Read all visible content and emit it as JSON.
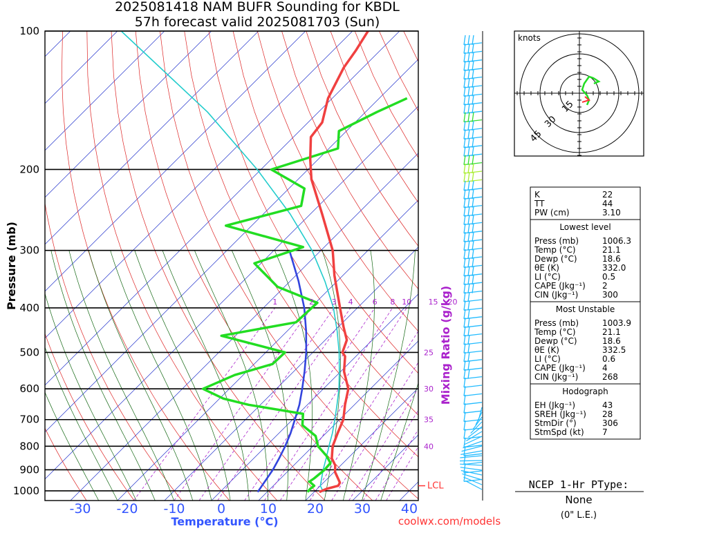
{
  "title": {
    "line1": "2025081418 NAM BUFR Sounding for KBDL",
    "line2": "57h forecast valid 2025081703 (Sun)"
  },
  "colors": {
    "temperature": "#f04040",
    "dewpoint": "#22dd22",
    "parcel": "#22cccc",
    "moist_adiabat_ref": "#3344dd",
    "isotherm": "#2233cc",
    "dry_adiabat": "#dd2222",
    "moist_adiabat": "#116611",
    "mixing_ratio": "#aa22cc",
    "axis_label_blue": "#3355ff",
    "wind": "#22bbff",
    "wind_highlight": "#33dd33",
    "wind_highlight2": "#aaee33",
    "lcl": "#ff3333",
    "url": "#ff3333"
  },
  "chart_data": {
    "type": "skew-t",
    "title": "2025081418 NAM BUFR Sounding for KBDL",
    "subtitle": "57h forecast valid 2025081703 (Sun)",
    "ylabel": "Pressure (mb)",
    "xlabel": "Temperature (°C)",
    "right_label": "Mixing Ratio (g/kg)",
    "ylim": [
      100,
      1050
    ],
    "y_scale": "log-reversed",
    "pressure_ticks": [
      100,
      200,
      300,
      400,
      500,
      600,
      700,
      800,
      900,
      1000
    ],
    "temperature_ticks": [
      -30,
      -20,
      -10,
      0,
      10,
      20,
      30,
      40
    ],
    "mixing_ratio_labels": [
      {
        "label": "1",
        "w": 1
      },
      {
        "label": "2",
        "w": 2
      },
      {
        "label": "3",
        "w": 3
      },
      {
        "label": "4",
        "w": 4
      },
      {
        "label": "6",
        "w": 6
      },
      {
        "label": "8",
        "w": 8
      },
      {
        "label": "10",
        "w": 10
      },
      {
        "label": "15",
        "w": 15
      },
      {
        "label": "20",
        "w": 20
      },
      {
        "label": "25",
        "w": 25
      },
      {
        "label": "30",
        "w": 30
      },
      {
        "label": "35",
        "w": 35
      },
      {
        "label": "40",
        "w": 40
      }
    ],
    "lcl_label": "LCL",
    "lcl_pressure": 975,
    "series": [
      {
        "name": "Temperature",
        "points": [
          [
            1006,
            21.1
          ],
          [
            990,
            22.0
          ],
          [
            975,
            23.8
          ],
          [
            960,
            23.5
          ],
          [
            940,
            22.2
          ],
          [
            910,
            20.2
          ],
          [
            880,
            18.8
          ],
          [
            850,
            16.6
          ],
          [
            800,
            14.2
          ],
          [
            750,
            12.5
          ],
          [
            700,
            10.8
          ],
          [
            650,
            8.0
          ],
          [
            600,
            5.3
          ],
          [
            550,
            0.7
          ],
          [
            510,
            -2.3
          ],
          [
            500,
            -3.7
          ],
          [
            470,
            -5.4
          ],
          [
            440,
            -8.9
          ],
          [
            400,
            -13.7
          ],
          [
            370,
            -17.6
          ],
          [
            340,
            -21.8
          ],
          [
            300,
            -27.5
          ],
          [
            250,
            -37.5
          ],
          [
            210,
            -47.2
          ],
          [
            190,
            -51.7
          ],
          [
            170,
            -56.3
          ],
          [
            158,
            -57.0
          ],
          [
            140,
            -60.9
          ],
          [
            120,
            -64.1
          ],
          [
            110,
            -65.2
          ],
          [
            100,
            -66.7
          ]
        ]
      },
      {
        "name": "Dewpoint",
        "points": [
          [
            1006,
            18.6
          ],
          [
            990,
            18.5
          ],
          [
            975,
            18.7
          ],
          [
            955,
            16.8
          ],
          [
            940,
            17.1
          ],
          [
            900,
            17.5
          ],
          [
            870,
            17.3
          ],
          [
            840,
            15.0
          ],
          [
            800,
            11.1
          ],
          [
            760,
            8.4
          ],
          [
            720,
            3.3
          ],
          [
            680,
            1.0
          ],
          [
            650,
            -12.5
          ],
          [
            630,
            -19.2
          ],
          [
            600,
            -25.6
          ],
          [
            560,
            -21.8
          ],
          [
            530,
            -16.1
          ],
          [
            500,
            -15.9
          ],
          [
            460,
            -33.0
          ],
          [
            430,
            -20.0
          ],
          [
            390,
            -19.6
          ],
          [
            360,
            -31.5
          ],
          [
            320,
            -41.4
          ],
          [
            295,
            -34.5
          ],
          [
            265,
            -55.5
          ],
          [
            240,
            -43.7
          ],
          [
            220,
            -46.7
          ],
          [
            200,
            -57.8
          ],
          [
            180,
            -48.1
          ],
          [
            165,
            -51.6
          ],
          [
            150,
            -47.6
          ],
          [
            140,
            -44.1
          ]
        ]
      },
      {
        "name": "Parcel",
        "points": [
          [
            1006,
            22.0
          ],
          [
            975,
            20.0
          ],
          [
            900,
            17.2
          ],
          [
            850,
            15.4
          ],
          [
            800,
            13.4
          ],
          [
            750,
            11.4
          ],
          [
            700,
            9.0
          ],
          [
            650,
            6.3
          ],
          [
            600,
            3.3
          ],
          [
            550,
            -0.3
          ],
          [
            500,
            -4.4
          ],
          [
            450,
            -9.3
          ],
          [
            400,
            -15.1
          ],
          [
            350,
            -22.6
          ],
          [
            300,
            -31.9
          ],
          [
            250,
            -44.3
          ],
          [
            200,
            -60.8
          ],
          [
            150,
            -83.6
          ],
          [
            100,
            -119.2
          ]
        ]
      },
      {
        "name": "Moist adiabat reference",
        "points": [
          [
            1006,
            8.0
          ],
          [
            900,
            6.5
          ],
          [
            850,
            5.4
          ],
          [
            800,
            4.1
          ],
          [
            750,
            2.5
          ],
          [
            700,
            0.5
          ],
          [
            650,
            -1.7
          ],
          [
            600,
            -4.5
          ],
          [
            550,
            -7.7
          ],
          [
            500,
            -11.4
          ],
          [
            450,
            -15.9
          ],
          [
            400,
            -21.3
          ],
          [
            350,
            -28.2
          ],
          [
            300,
            -36.7
          ]
        ]
      }
    ]
  },
  "hodograph": {
    "units_label": "knots",
    "rings": [
      "15",
      "30",
      "45"
    ]
  },
  "indices": {
    "top": [
      {
        "label": "K",
        "value": "22"
      },
      {
        "label": "TT",
        "value": "44"
      },
      {
        "label": "PW (cm)",
        "value": "3.10"
      }
    ],
    "lowest_level": {
      "header": "Lowest level",
      "rows": [
        {
          "label": "Press (mb)",
          "value": "1006.3"
        },
        {
          "label": "Temp (°C)",
          "value": "21.1"
        },
        {
          "label": "Dewp (°C)",
          "value": "18.6"
        },
        {
          "label": "θE (K)",
          "value": "332.0"
        },
        {
          "label": "LI (°C)",
          "value": "0.5"
        },
        {
          "label": "CAPE (Jkg⁻¹)",
          "value": "2"
        },
        {
          "label": "CIN (Jkg⁻¹)",
          "value": "300"
        }
      ]
    },
    "most_unstable": {
      "header": "Most Unstable",
      "rows": [
        {
          "label": "Press (mb)",
          "value": "1003.9"
        },
        {
          "label": "Temp (°C)",
          "value": "21.1"
        },
        {
          "label": "Dewp (°C)",
          "value": "18.6"
        },
        {
          "label": "θE (K)",
          "value": "332.5"
        },
        {
          "label": "LI (°C)",
          "value": "0.6"
        },
        {
          "label": "CAPE (Jkg⁻¹)",
          "value": "4"
        },
        {
          "label": "CIN (Jkg⁻¹)",
          "value": "268"
        }
      ]
    },
    "hodograph": {
      "header": "Hodograph",
      "rows": [
        {
          "label": "EH (Jkg⁻¹)",
          "value": "43"
        },
        {
          "label": "SREH (Jkg⁻¹)",
          "value": "28"
        },
        {
          "label": "StmDir (°)",
          "value": "306"
        },
        {
          "label": "StmSpd (kt)",
          "value": "7"
        }
      ]
    }
  },
  "ptype": {
    "header": "NCEP 1-Hr PType:",
    "value": "None",
    "detail": "(0\" L.E.)"
  },
  "footer_url": "coolwx.com/models"
}
